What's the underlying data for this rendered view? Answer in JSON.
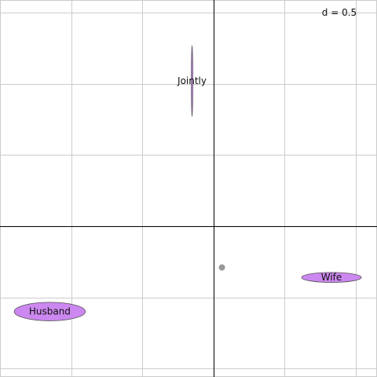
{
  "chart_data": {
    "type": "scatter",
    "title": "",
    "xlabel": "",
    "ylabel": "",
    "scale_label": "d = 0.5",
    "grid": true,
    "grid_step": 0.5,
    "xlim": [
      -1.5,
      1.15
    ],
    "ylim": [
      -1.06,
      1.59
    ],
    "origin": [
      0,
      0
    ],
    "centroid": {
      "x": 0.06,
      "y": -0.29
    },
    "ellipses": [
      {
        "label": "Jointly",
        "x": -0.15,
        "y": 1.02,
        "rx": 0.003,
        "ry": 0.25
      },
      {
        "label": "Wife",
        "x": 0.83,
        "y": -0.36,
        "rx": 0.21,
        "ry": 0.035
      },
      {
        "label": "Husband",
        "x": -1.15,
        "y": -0.6,
        "rx": 0.25,
        "ry": 0.065
      }
    ],
    "colors": {
      "ellipse_fill": "#cc88f0",
      "ellipse_stroke": "#555555",
      "grid": "#cccccc",
      "axis": "#000000",
      "centroid": "#999999"
    }
  }
}
